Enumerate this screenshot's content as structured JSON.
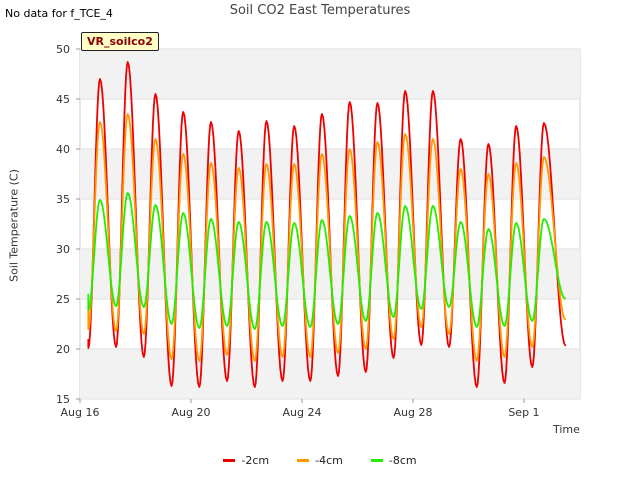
{
  "note": "No data for f_TCE_4",
  "badge": "VR_soilco2",
  "chart_data": {
    "type": "line",
    "title": "Soil CO2 East Temperatures",
    "xlabel": "Time",
    "ylabel": "Soil Temperature (C)",
    "ylim": [
      15,
      50
    ],
    "yticks": [
      15,
      20,
      25,
      30,
      35,
      40,
      45,
      50
    ],
    "xlim": [
      "2021-08-16",
      "2021-09-03"
    ],
    "xticks": [
      {
        "date": "2021-08-16",
        "label": "Aug 16"
      },
      {
        "date": "2021-08-20",
        "label": "Aug 20"
      },
      {
        "date": "2021-08-24",
        "label": "Aug 24"
      },
      {
        "date": "2021-08-28",
        "label": "Aug 28"
      },
      {
        "date": "2021-09-01",
        "label": "Sep 1"
      }
    ],
    "grid": "horizontal bands",
    "legend": "bottom",
    "series": [
      {
        "name": "-2cm",
        "color": "#ee0000",
        "start": 21,
        "end": 20.3,
        "mins": [
          20.1,
          20.2,
          19.2,
          16.3,
          16.2,
          16.8,
          16.2,
          16.8,
          16.8,
          17.3,
          17.7,
          19.1,
          20.4,
          20.2,
          16.2,
          16.6,
          18.2
        ],
        "maxs": [
          47.0,
          48.7,
          45.5,
          43.7,
          42.7,
          41.8,
          42.8,
          42.3,
          43.5,
          44.7,
          44.6,
          45.8,
          45.8,
          41.0,
          40.5,
          42.3,
          42.6
        ]
      },
      {
        "name": "-4cm",
        "color": "#ff9900",
        "start": 23.9,
        "end": 22.9,
        "mins": [
          22.0,
          21.8,
          21.5,
          19.0,
          18.8,
          19.4,
          18.8,
          19.2,
          19.2,
          19.6,
          20.0,
          21.0,
          22.2,
          21.5,
          18.8,
          19.2,
          20.2
        ],
        "maxs": [
          42.7,
          43.5,
          41.0,
          39.5,
          38.6,
          38.1,
          38.5,
          38.5,
          39.5,
          40.0,
          40.7,
          41.5,
          41.0,
          38.0,
          37.5,
          38.6,
          39.2
        ]
      },
      {
        "name": "-8cm",
        "color": "#22ee00",
        "start": 25.5,
        "end": 25.0,
        "mins": [
          23.9,
          24.3,
          24.2,
          22.5,
          22.1,
          22.3,
          22.0,
          22.3,
          22.2,
          22.5,
          22.8,
          23.2,
          24.0,
          24.2,
          22.2,
          22.3,
          22.8
        ],
        "maxs": [
          34.9,
          35.6,
          34.4,
          33.6,
          33.0,
          32.7,
          32.7,
          32.6,
          32.9,
          33.3,
          33.6,
          34.3,
          34.3,
          32.7,
          32.0,
          32.6,
          33.0
        ]
      }
    ]
  }
}
